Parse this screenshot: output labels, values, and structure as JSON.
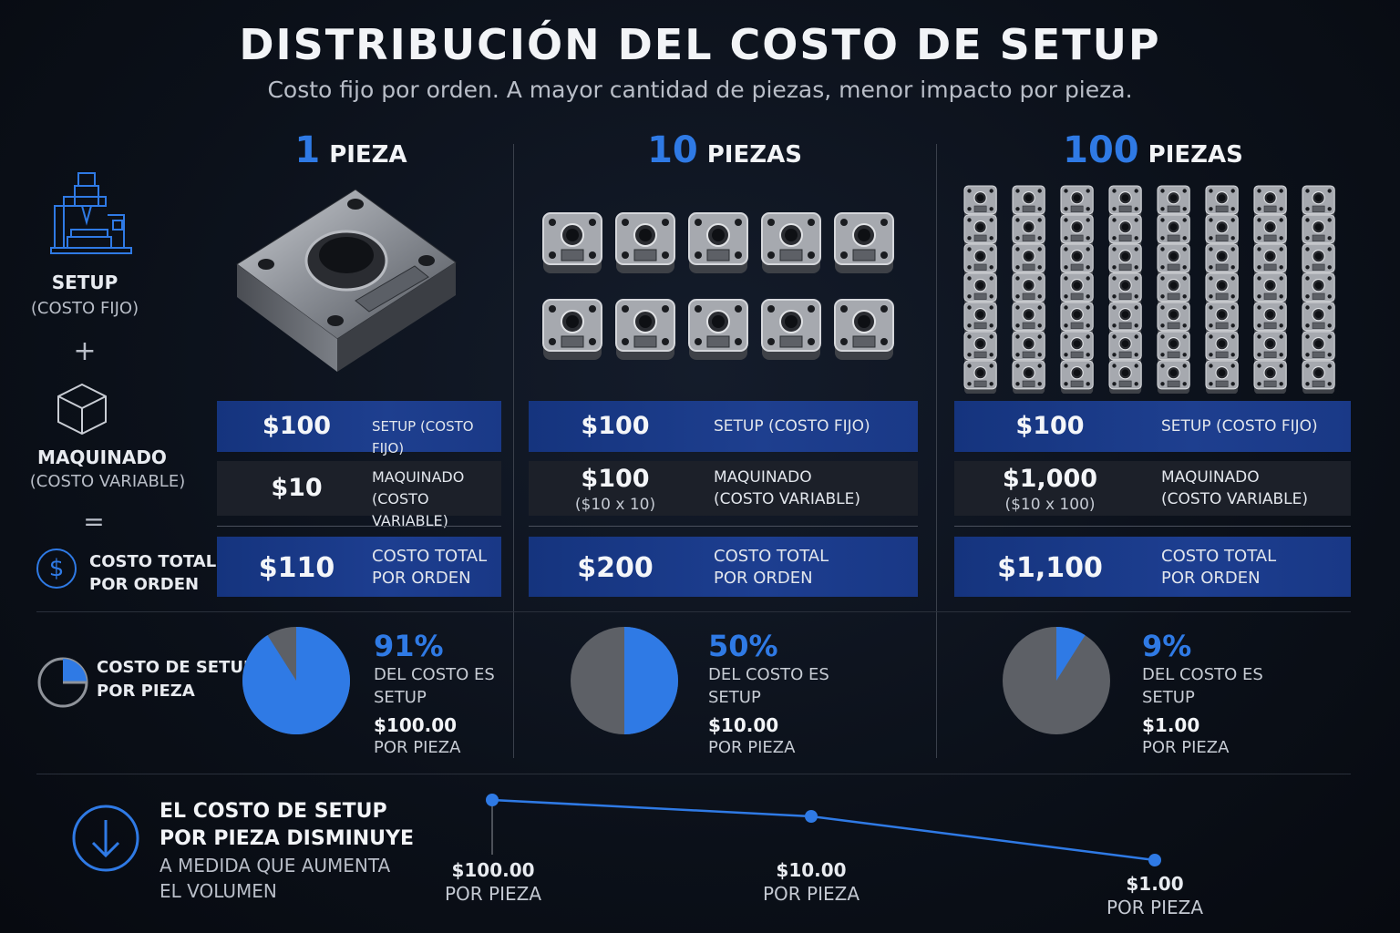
{
  "title": "DISTRIBUCIÓN DEL COSTO DE SETUP",
  "subtitle": "Costo fijo por orden. A mayor cantidad de piezas, menor impacto por pieza.",
  "legend": {
    "setup_label": "SETUP",
    "setup_sub": "(COSTO FIJO)",
    "plus": "+",
    "maq_label": "MAQUINADO",
    "maq_sub": "(COSTO VARIABLE)",
    "equals": "=",
    "dollar": "$",
    "total_label_1": "COSTO TOTAL",
    "total_label_2": "POR ORDEN",
    "pie_label_1": "COSTO DE SETUP",
    "pie_label_2": "POR PIEZA"
  },
  "columns": [
    {
      "qty": "1",
      "unit": "PIEZA",
      "setup_amount": "$100",
      "setup_label": "SETUP (COSTO FIJO)",
      "maq_amount": "$10",
      "maq_sub": "",
      "maq_label_1": "MAQUINADO",
      "maq_label_2": "(COSTO VARIABLE)",
      "total_amount": "$110",
      "total_label_1": "COSTO TOTAL",
      "total_label_2": "POR ORDEN",
      "pct": "91%",
      "pct_fraction": 0.91,
      "pct_text_1": "DEL COSTO ES",
      "pct_text_2": "SETUP",
      "per_piece": "$100.00",
      "per_piece_label": "POR PIEZA"
    },
    {
      "qty": "10",
      "unit": "PIEZAS",
      "setup_amount": "$100",
      "setup_label": "SETUP (COSTO FIJO)",
      "maq_amount": "$100",
      "maq_sub": "($10 x 10)",
      "maq_label_1": "MAQUINADO",
      "maq_label_2": "(COSTO VARIABLE)",
      "total_amount": "$200",
      "total_label_1": "COSTO TOTAL",
      "total_label_2": "POR ORDEN",
      "pct": "50%",
      "pct_fraction": 0.5,
      "pct_text_1": "DEL COSTO ES",
      "pct_text_2": "SETUP",
      "per_piece": "$10.00",
      "per_piece_label": "POR PIEZA"
    },
    {
      "qty": "100",
      "unit": "PIEZAS",
      "setup_amount": "$100",
      "setup_label": "SETUP (COSTO FIJO)",
      "maq_amount": "$1,000",
      "maq_sub": "($10 x 100)",
      "maq_label_1": "MAQUINADO",
      "maq_label_2": "(COSTO VARIABLE)",
      "total_amount": "$1,100",
      "total_label_1": "COSTO TOTAL",
      "total_label_2": "POR ORDEN",
      "pct": "9%",
      "pct_fraction": 0.09,
      "pct_text_1": "DEL COSTO ES",
      "pct_text_2": "SETUP",
      "per_piece": "$1.00",
      "per_piece_label": "POR PIEZA"
    }
  ],
  "bottom": {
    "line1": "EL COSTO DE SETUP",
    "line2": "POR PIEZA DISMINUYE",
    "line3": "A MEDIDA QUE AUMENTA",
    "line4": "EL VOLUMEN",
    "points": [
      {
        "amount": "$100.00",
        "label": "POR PIEZA",
        "value": 100
      },
      {
        "amount": "$10.00",
        "label": "POR PIEZA",
        "value": 10
      },
      {
        "amount": "$1.00",
        "label": "POR PIEZA",
        "value": 1
      }
    ]
  },
  "colors": {
    "accent": "#2f7ae5",
    "gray_slice": "#5d6066",
    "setup_row": "#1e3f8f",
    "maq_row": "#1c2029"
  }
}
